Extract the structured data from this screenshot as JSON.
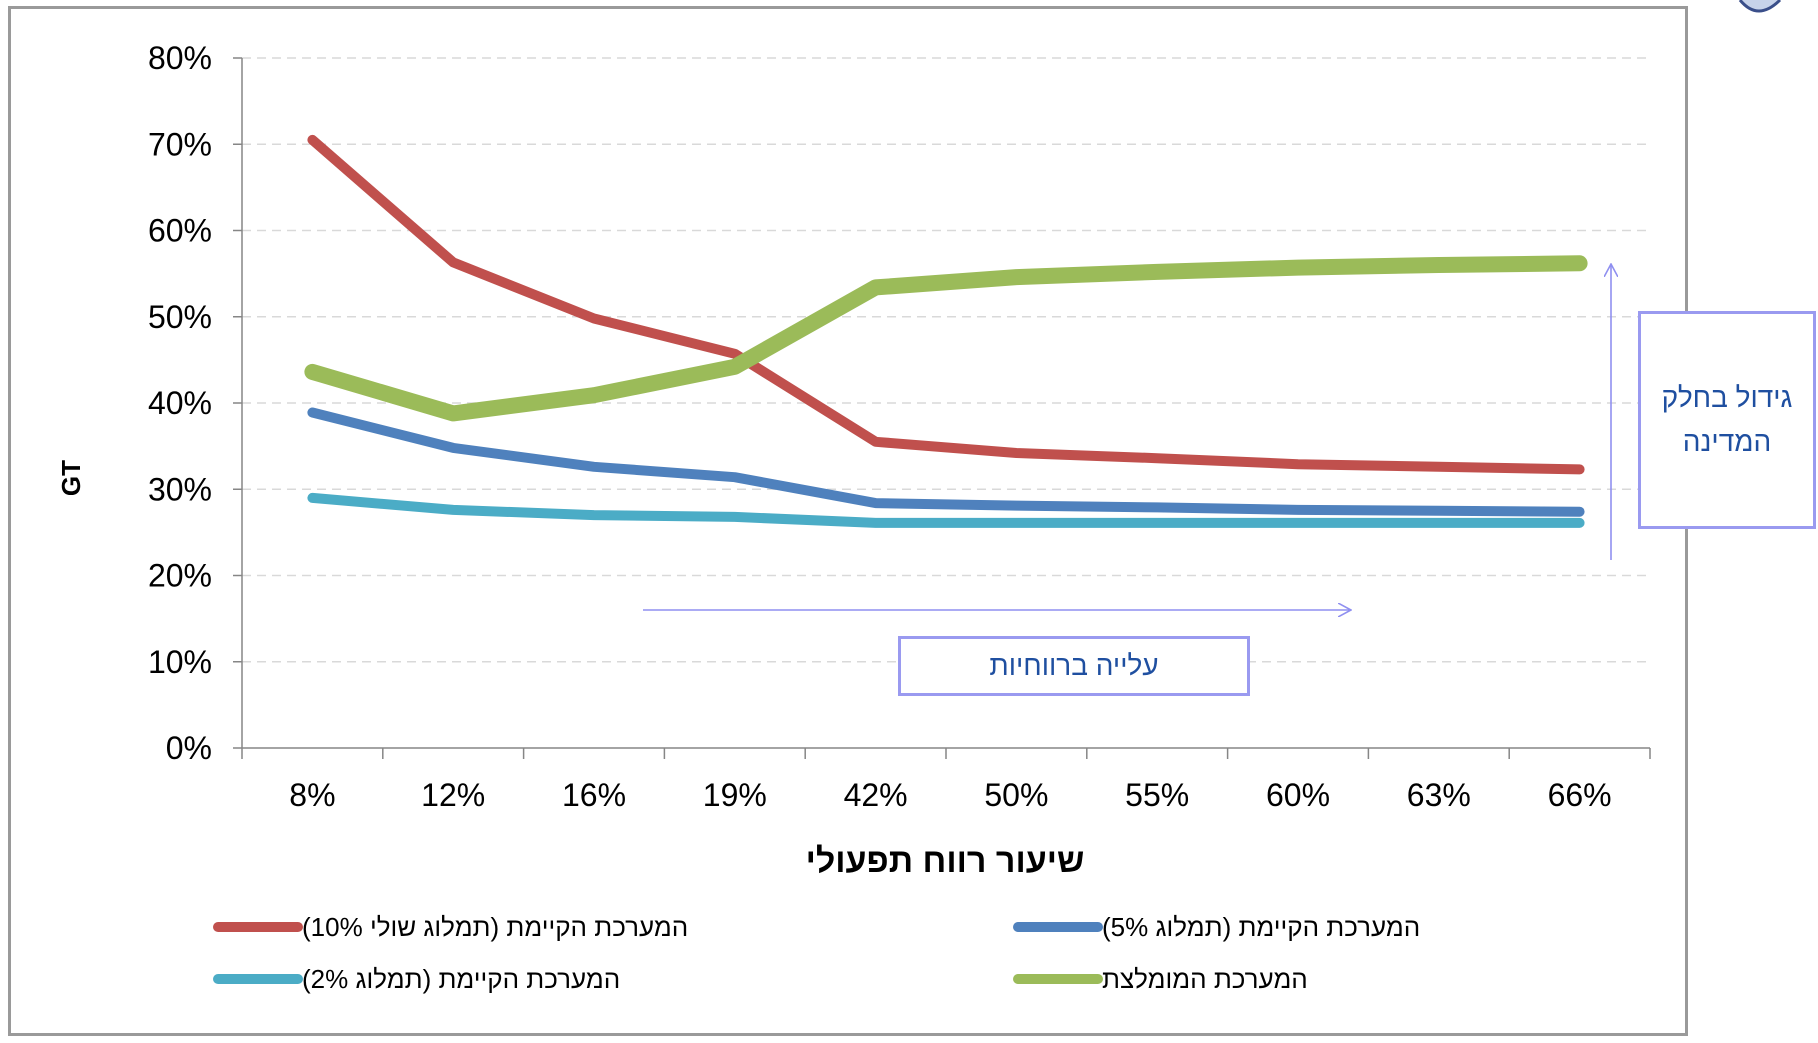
{
  "chart_data": {
    "type": "line",
    "title": "",
    "xlabel": "שיעור רווח תפעולי",
    "ylabel": "GT",
    "categories": [
      "8%",
      "12%",
      "16%",
      "19%",
      "42%",
      "50%",
      "55%",
      "60%",
      "63%",
      "66%"
    ],
    "ylim": [
      0,
      80
    ],
    "yticks": [
      "0%",
      "10%",
      "20%",
      "30%",
      "40%",
      "50%",
      "60%",
      "70%",
      "80%"
    ],
    "grid": "horizontal dashed",
    "legend_position": "bottom",
    "series": [
      {
        "name": "המערכת הקיימת (תמלוג שולי 10%)",
        "color": "#c0504d",
        "values": [
          70.5,
          56.3,
          49.8,
          45.7,
          35.5,
          34.2,
          33.6,
          32.9,
          32.6,
          32.3
        ]
      },
      {
        "name": "המערכת הקיימת (תמלוג 5%)",
        "color": "#4f81bd",
        "values": [
          38.9,
          34.8,
          32.6,
          31.4,
          28.4,
          28.1,
          27.9,
          27.6,
          27.5,
          27.4
        ]
      },
      {
        "name": "המערכת הקיימת (תמלוג 2%)",
        "color": "#4bacc6",
        "values": [
          29.0,
          27.6,
          27.0,
          26.8,
          26.1,
          26.1,
          26.1,
          26.1,
          26.1,
          26.1
        ]
      },
      {
        "name": "המערכת המומלצת",
        "color": "#9bbb59",
        "values": [
          43.6,
          38.8,
          40.9,
          44.2,
          53.4,
          54.6,
          55.2,
          55.7,
          56.0,
          56.2
        ]
      }
    ],
    "annotations": [
      {
        "text": "עלייה ברווחיות",
        "direction": "right"
      },
      {
        "text": "גידול בחלק המדינה",
        "direction": "up"
      }
    ]
  },
  "colors": {
    "grid": "#d9d9d9",
    "axis": "#868686",
    "annotation_border": "#9a9af0",
    "annotation_text": "#1f4fa0",
    "arrow": "#8f8ff0"
  }
}
